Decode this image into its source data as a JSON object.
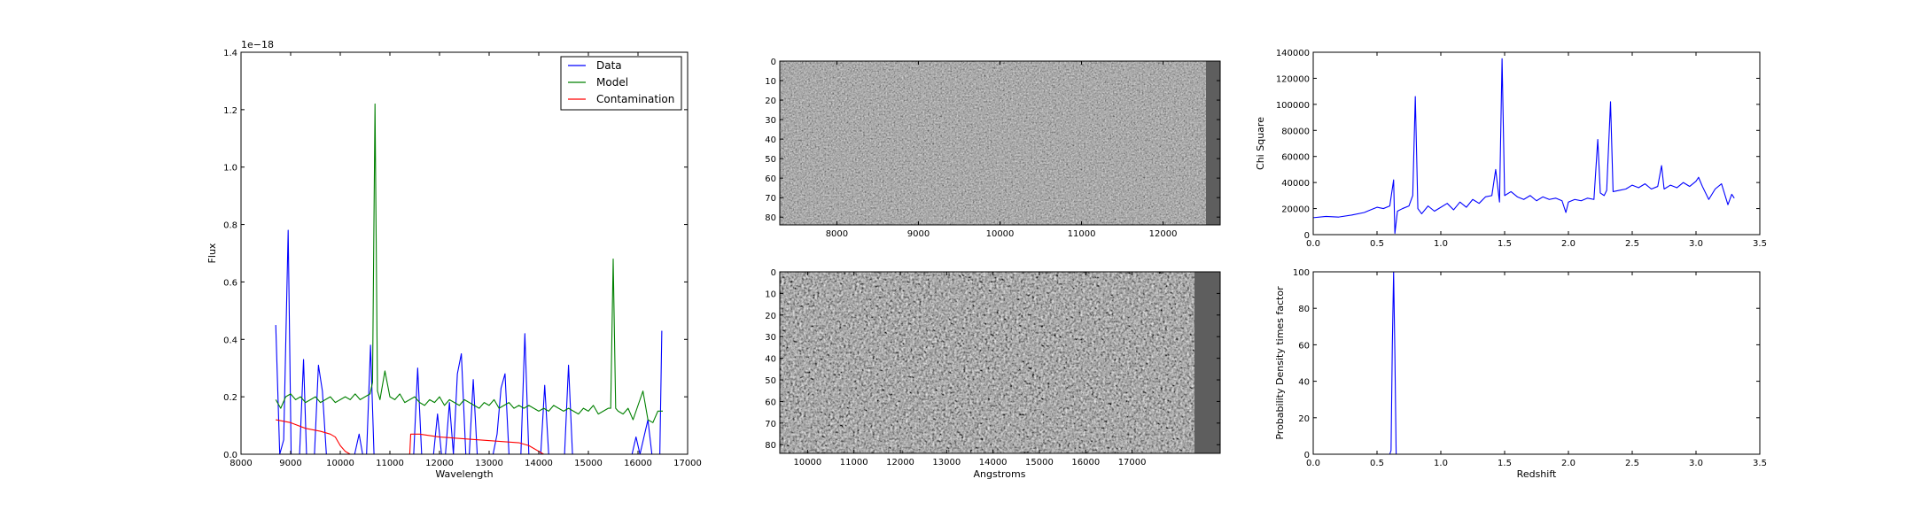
{
  "chart_data": [
    {
      "id": "spectrum",
      "type": "line",
      "xlabel": "Wavelength",
      "ylabel": "Flux",
      "offset_label": "1e−18",
      "xlim": [
        8000,
        17000
      ],
      "ylim": [
        0.0,
        1.4
      ],
      "xticks": [
        "8000",
        "9000",
        "10000",
        "11000",
        "12000",
        "13000",
        "14000",
        "15000",
        "16000",
        "17000"
      ],
      "yticks": [
        "0.0",
        "0.2",
        "0.4",
        "0.6",
        "0.8",
        "1.0",
        "1.2",
        "1.4"
      ],
      "legend": {
        "position": "top-right",
        "entries": [
          "Data",
          "Model",
          "Contamination"
        ]
      },
      "series": [
        {
          "name": "Data",
          "color": "#0000ff",
          "x": [
            8700,
            8780,
            8860,
            8950,
            9010,
            9080,
            9180,
            9260,
            9320,
            9400,
            9480,
            9560,
            9640,
            9720,
            9800,
            9880,
            9960,
            10040,
            10120,
            10200,
            10290,
            10380,
            10450,
            10530,
            10610,
            10680,
            10760,
            10840,
            10920,
            11000,
            11100,
            11200,
            11300,
            11400,
            11480,
            11560,
            11640,
            11720,
            11800,
            11880,
            11960,
            12040,
            12120,
            12200,
            12280,
            12360,
            12440,
            12530,
            12600,
            12680,
            12760,
            12840,
            12920,
            13000,
            13080,
            13160,
            13240,
            13320,
            13400,
            13480,
            13560,
            13640,
            13720,
            13800,
            13880,
            13960,
            14040,
            14120,
            14200,
            14280,
            14360,
            14440,
            14520,
            14600,
            14680,
            14760,
            14840,
            14920,
            15000,
            15080,
            15160,
            15240,
            15320,
            15400,
            15480,
            15560,
            15640,
            15720,
            15800,
            15880,
            15960,
            16040,
            16120,
            16200,
            16280,
            16360,
            16440,
            16480
          ],
          "y": [
            0.45,
            0.0,
            0.05,
            0.78,
            0.0,
            0.0,
            0.0,
            0.33,
            0.0,
            0.0,
            0.0,
            0.31,
            0.22,
            0.0,
            0.0,
            0.0,
            0.0,
            0.0,
            0.0,
            0.0,
            0.0,
            0.07,
            0.0,
            0.0,
            0.38,
            0.0,
            0.0,
            0.0,
            0.0,
            0.0,
            0.0,
            0.0,
            0.0,
            0.0,
            0.0,
            0.3,
            0.0,
            0.0,
            0.0,
            0.0,
            0.14,
            0.0,
            0.0,
            0.18,
            0.0,
            0.28,
            0.35,
            0.0,
            0.0,
            0.26,
            0.0,
            0.0,
            0.0,
            0.0,
            0.0,
            0.07,
            0.23,
            0.28,
            0.0,
            0.0,
            0.0,
            0.0,
            0.42,
            0.0,
            0.0,
            0.0,
            0.0,
            0.24,
            0.0,
            0.0,
            0.0,
            0.0,
            0.0,
            0.31,
            0.0,
            0.0,
            0.0,
            0.0,
            0.0,
            0.0,
            0.0,
            0.0,
            0.0,
            0.0,
            0.0,
            0.0,
            0.0,
            0.0,
            0.0,
            0.0,
            0.06,
            0.0,
            0.06,
            0.12,
            0.0,
            0.0,
            0.0,
            0.43
          ]
        },
        {
          "name": "Model",
          "color": "#008000",
          "x": [
            8700,
            8800,
            8900,
            9000,
            9100,
            9200,
            9300,
            9400,
            9500,
            9600,
            9700,
            9800,
            9900,
            10000,
            10100,
            10200,
            10300,
            10400,
            10500,
            10600,
            10650,
            10700,
            10750,
            10800,
            10900,
            11000,
            11100,
            11200,
            11300,
            11400,
            11500,
            11600,
            11700,
            11800,
            11900,
            12000,
            12100,
            12200,
            12300,
            12400,
            12500,
            12600,
            12700,
            12800,
            12900,
            13000,
            13100,
            13200,
            13300,
            13400,
            13500,
            13600,
            13700,
            13800,
            13900,
            14000,
            14100,
            14200,
            14300,
            14400,
            14500,
            14600,
            14700,
            14800,
            14900,
            15000,
            15100,
            15200,
            15300,
            15400,
            15450,
            15500,
            15550,
            15600,
            15700,
            15800,
            15900,
            16000,
            16100,
            16200,
            16300,
            16400,
            16500
          ],
          "y": [
            0.19,
            0.16,
            0.2,
            0.21,
            0.19,
            0.2,
            0.18,
            0.19,
            0.2,
            0.18,
            0.19,
            0.2,
            0.18,
            0.19,
            0.2,
            0.19,
            0.21,
            0.19,
            0.2,
            0.21,
            0.25,
            1.22,
            0.22,
            0.19,
            0.29,
            0.2,
            0.19,
            0.21,
            0.18,
            0.19,
            0.2,
            0.18,
            0.17,
            0.19,
            0.18,
            0.2,
            0.17,
            0.19,
            0.18,
            0.17,
            0.19,
            0.18,
            0.17,
            0.16,
            0.18,
            0.17,
            0.19,
            0.16,
            0.17,
            0.18,
            0.16,
            0.17,
            0.16,
            0.17,
            0.16,
            0.15,
            0.16,
            0.15,
            0.17,
            0.16,
            0.15,
            0.16,
            0.15,
            0.14,
            0.16,
            0.15,
            0.17,
            0.14,
            0.15,
            0.16,
            0.16,
            0.68,
            0.16,
            0.15,
            0.14,
            0.16,
            0.12,
            0.17,
            0.22,
            0.12,
            0.11,
            0.15,
            0.15
          ]
        },
        {
          "name": "Contamination",
          "color": "#ff0000",
          "x": [
            8700,
            9000,
            9300,
            9600,
            9800,
            9900,
            10000,
            10100,
            10200,
            11300,
            11400,
            11420,
            11600,
            12000,
            12400,
            12800,
            13200,
            13600,
            13800,
            13900,
            14000,
            14100,
            16500
          ],
          "y": [
            0.12,
            0.11,
            0.09,
            0.08,
            0.07,
            0.06,
            0.03,
            0.01,
            0.0,
            0.0,
            0.0,
            0.07,
            0.07,
            0.06,
            0.055,
            0.05,
            0.045,
            0.04,
            0.03,
            0.02,
            0.01,
            0.0,
            0.0
          ]
        }
      ]
    },
    {
      "id": "image2d_top",
      "type": "heatmap",
      "colormap": "gray",
      "xlim": [
        7300,
        12700
      ],
      "ylim": [
        84,
        0
      ],
      "xticks": [
        "8000",
        "9000",
        "10000",
        "11000",
        "12000"
      ],
      "yticks": [
        "0",
        "10",
        "20",
        "30",
        "40",
        "50",
        "60",
        "70",
        "80"
      ]
    },
    {
      "id": "image2d_bottom",
      "type": "heatmap",
      "colormap": "gray",
      "xlabel": "Angstroms",
      "xlim": [
        9400,
        18900
      ],
      "ylim": [
        84,
        0
      ],
      "xticks": [
        "10000",
        "11000",
        "12000",
        "13000",
        "14000",
        "15000",
        "16000",
        "17000"
      ],
      "yticks": [
        "0",
        "10",
        "20",
        "30",
        "40",
        "50",
        "60",
        "70",
        "80"
      ]
    },
    {
      "id": "chisquare",
      "type": "line",
      "ylabel": "Chi Square",
      "xlim": [
        0.0,
        3.5
      ],
      "ylim": [
        0,
        140000
      ],
      "xticks": [
        "0.0",
        "0.5",
        "1.0",
        "1.5",
        "2.0",
        "2.5",
        "3.0",
        "3.5"
      ],
      "yticks": [
        "0",
        "20000",
        "40000",
        "60000",
        "80000",
        "100000",
        "120000",
        "140000"
      ],
      "series": [
        {
          "color": "#0000ff",
          "x": [
            0.0,
            0.1,
            0.2,
            0.3,
            0.4,
            0.45,
            0.5,
            0.55,
            0.6,
            0.63,
            0.64,
            0.66,
            0.7,
            0.75,
            0.78,
            0.8,
            0.82,
            0.85,
            0.9,
            0.95,
            1.0,
            1.05,
            1.1,
            1.15,
            1.2,
            1.25,
            1.3,
            1.35,
            1.4,
            1.43,
            1.46,
            1.48,
            1.5,
            1.55,
            1.6,
            1.65,
            1.7,
            1.75,
            1.8,
            1.85,
            1.9,
            1.95,
            1.98,
            2.0,
            2.05,
            2.1,
            2.15,
            2.2,
            2.23,
            2.25,
            2.28,
            2.3,
            2.33,
            2.35,
            2.4,
            2.45,
            2.5,
            2.55,
            2.6,
            2.65,
            2.7,
            2.73,
            2.75,
            2.8,
            2.85,
            2.9,
            2.95,
            3.0,
            3.02,
            3.05,
            3.1,
            3.15,
            3.2,
            3.25,
            3.28,
            3.3
          ],
          "y": [
            13000,
            14000,
            13500,
            15000,
            17000,
            19000,
            21000,
            20000,
            22000,
            42000,
            1000,
            18000,
            20000,
            22000,
            30000,
            106000,
            20000,
            16000,
            22000,
            18000,
            21000,
            24000,
            19000,
            25000,
            21000,
            27000,
            24000,
            29000,
            30000,
            50000,
            25000,
            135000,
            30000,
            33000,
            29000,
            27000,
            30000,
            26000,
            29000,
            27000,
            28000,
            26000,
            17000,
            25000,
            27000,
            26000,
            28000,
            27000,
            73000,
            32000,
            30000,
            34000,
            102000,
            33000,
            34000,
            35000,
            38000,
            36000,
            39000,
            35000,
            37000,
            53000,
            35000,
            38000,
            36000,
            40000,
            37000,
            41000,
            44000,
            37000,
            27000,
            35000,
            39000,
            23000,
            31000,
            28000
          ]
        }
      ]
    },
    {
      "id": "probability",
      "type": "line",
      "xlabel": "Redshift",
      "ylabel": "Probability Density times factor",
      "xlim": [
        0.0,
        3.5
      ],
      "ylim": [
        0,
        100
      ],
      "xticks": [
        "0.0",
        "0.5",
        "1.0",
        "1.5",
        "2.0",
        "2.5",
        "3.0",
        "3.5"
      ],
      "yticks": [
        "0",
        "20",
        "40",
        "60",
        "80",
        "100"
      ],
      "series": [
        {
          "color": "#0000ff",
          "x": [
            0.0,
            0.6,
            0.61,
            0.62,
            0.63,
            0.64,
            0.65,
            3.3
          ],
          "y": [
            0,
            0,
            2,
            60,
            100,
            55,
            0,
            0
          ]
        }
      ]
    }
  ]
}
